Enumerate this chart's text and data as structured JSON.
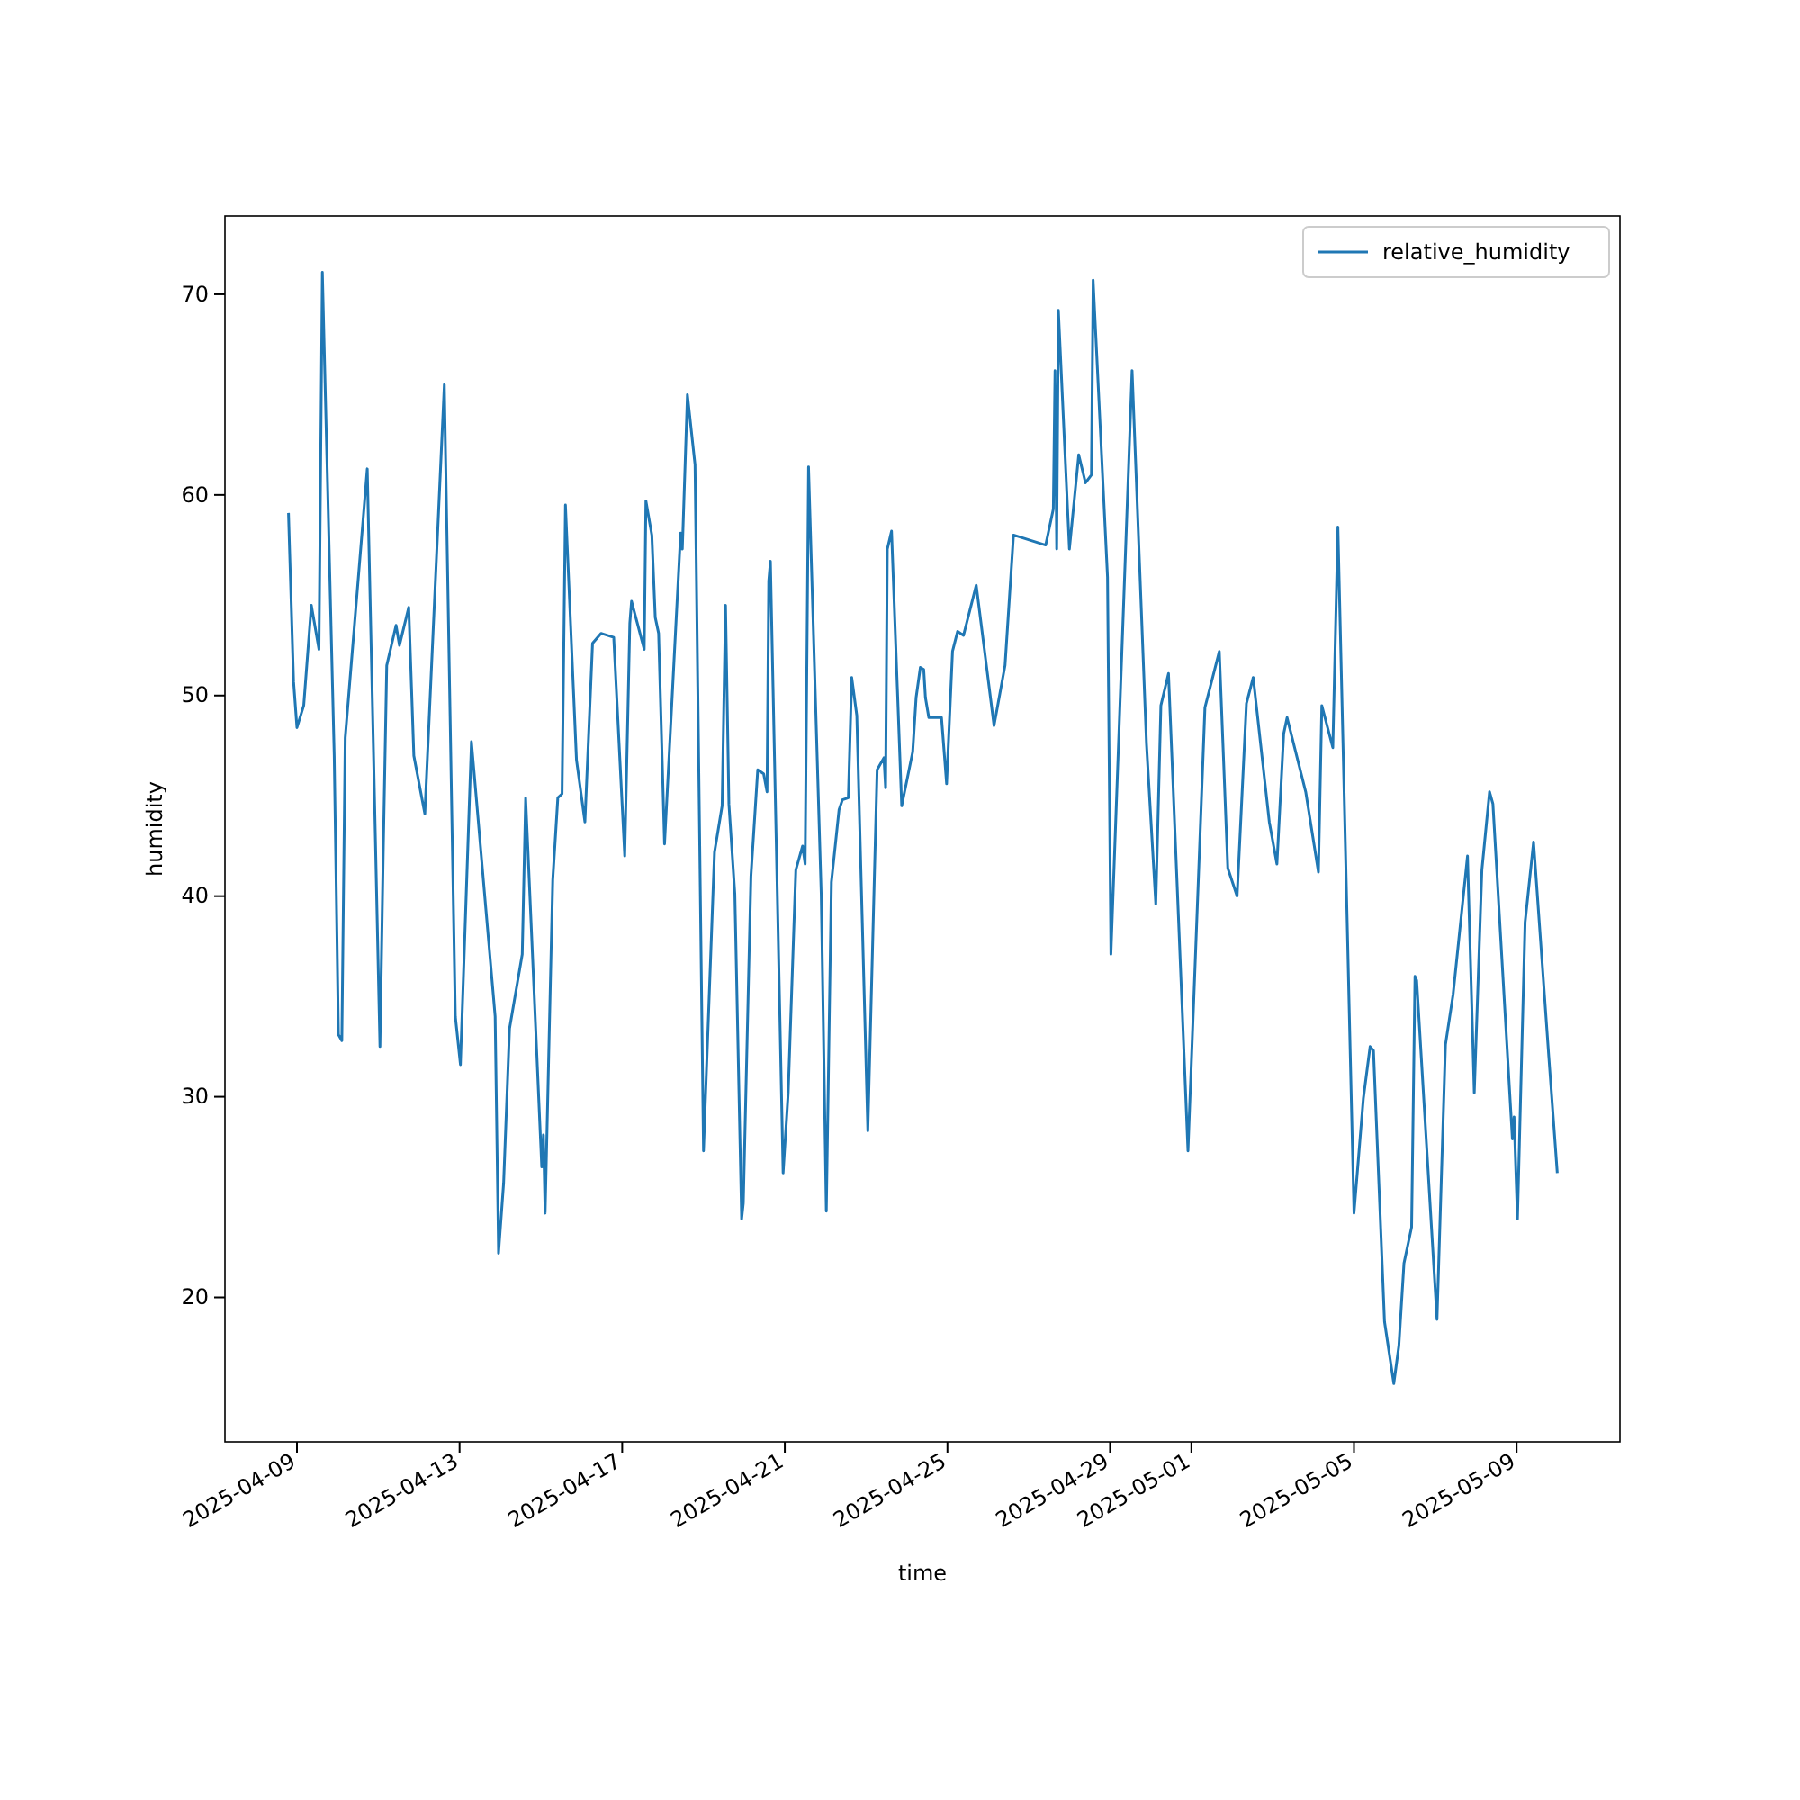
{
  "chart_data": {
    "type": "line",
    "xlabel": "time",
    "ylabel": "humidity",
    "xlim": [
      "2025-04-07T05:30",
      "2025-05-11T13:00"
    ],
    "xticks": [
      "2025-04-09",
      "2025-04-13",
      "2025-04-17",
      "2025-04-21",
      "2025-04-25",
      "2025-04-29",
      "2025-05-01",
      "2025-05-05",
      "2025-05-09"
    ],
    "ylim": [
      12.8,
      73.9
    ],
    "yticks": [
      20,
      30,
      40,
      50,
      60,
      70
    ],
    "legend": "top right",
    "grid": false,
    "x": [
      "2025-04-08T19:00",
      "2025-04-08T22:00",
      "2025-04-09T00:00",
      "2025-04-09T04:00",
      "2025-04-09T08:30",
      "2025-04-09T13:00",
      "2025-04-09T15:00",
      "2025-04-09T22:00",
      "2025-04-10T00:30",
      "2025-04-10T02:30",
      "2025-04-10T04:30",
      "2025-04-10T17:30",
      "2025-04-11T01:00",
      "2025-04-11T03:00",
      "2025-04-11T05:00",
      "2025-04-11T10:30",
      "2025-04-11T12:30",
      "2025-04-11T18:00",
      "2025-04-11T21:00",
      "2025-04-12T03:30",
      "2025-04-12T15:00",
      "2025-04-12T21:30",
      "2025-04-13T00:30",
      "2025-04-13T07:00",
      "2025-04-13T21:00",
      "2025-04-13T23:00",
      "2025-04-14T02:00",
      "2025-04-14T05:30",
      "2025-04-14T13:00",
      "2025-04-14T15:00",
      "2025-04-15T00:30",
      "2025-04-15T01:30",
      "2025-04-15T02:30",
      "2025-04-15T07:00",
      "2025-04-15T10:00",
      "2025-04-15T12:30",
      "2025-04-15T14:30",
      "2025-04-15T21:00",
      "2025-04-16T02:00",
      "2025-04-16T06:30",
      "2025-04-16T11:30",
      "2025-04-16T19:00",
      "2025-04-17T01:30",
      "2025-04-17T04:30",
      "2025-04-17T05:30",
      "2025-04-17T13:00",
      "2025-04-17T14:00",
      "2025-04-17T17:30",
      "2025-04-17T19:30",
      "2025-04-17T21:30",
      "2025-04-18T01:00",
      "2025-04-18T10:30",
      "2025-04-18T11:30",
      "2025-04-18T14:30",
      "2025-04-18T19:00",
      "2025-04-19T00:00",
      "2025-04-19T06:30",
      "2025-04-19T11:00",
      "2025-04-19T13:00",
      "2025-04-19T15:00",
      "2025-04-19T18:30",
      "2025-04-19T22:30",
      "2025-04-19T23:30",
      "2025-04-20T04:00",
      "2025-04-20T08:00",
      "2025-04-20T11:30",
      "2025-04-20T13:30",
      "2025-04-20T14:30",
      "2025-04-20T15:30",
      "2025-04-20T23:00",
      "2025-04-21T02:00",
      "2025-04-21T06:30",
      "2025-04-21T10:30",
      "2025-04-21T12:00",
      "2025-04-21T14:00",
      "2025-04-21T21:30",
      "2025-04-22T00:30",
      "2025-04-22T03:30",
      "2025-04-22T08:00",
      "2025-04-22T10:00",
      "2025-04-22T13:30",
      "2025-04-22T15:30",
      "2025-04-22T18:30",
      "2025-04-23T01:00",
      "2025-04-23T06:30",
      "2025-04-23T10:30",
      "2025-04-23T11:30",
      "2025-04-23T12:30",
      "2025-04-23T15:00",
      "2025-04-23T21:00",
      "2025-04-24T03:30",
      "2025-04-24T05:30",
      "2025-04-24T08:00",
      "2025-04-24T10:00",
      "2025-04-24T11:00",
      "2025-04-24T13:00",
      "2025-04-24T20:30",
      "2025-04-24T23:30",
      "2025-04-25T03:00",
      "2025-04-25T06:00",
      "2025-04-25T09:30",
      "2025-04-25T17:00",
      "2025-04-26T03:30",
      "2025-04-26T10:00",
      "2025-04-26T15:00",
      "2025-04-27T10:00",
      "2025-04-27T14:30",
      "2025-04-27T15:30",
      "2025-04-27T16:30",
      "2025-04-27T17:30",
      "2025-04-28T00:00",
      "2025-04-28T05:30",
      "2025-04-28T07:30",
      "2025-04-28T09:30",
      "2025-04-28T13:00",
      "2025-04-28T14:00",
      "2025-04-28T22:30",
      "2025-04-29T00:30",
      "2025-04-29T13:00",
      "2025-04-29T21:30",
      "2025-04-30T03:00",
      "2025-04-30T06:00",
      "2025-04-30T10:30",
      "2025-04-30T22:00",
      "2025-05-01T08:00",
      "2025-05-01T16:30",
      "2025-05-01T21:30",
      "2025-05-02T03:00",
      "2025-05-02T08:30",
      "2025-05-02T12:30",
      "2025-05-02T22:00",
      "2025-05-03T02:30",
      "2025-05-03T06:30",
      "2025-05-03T08:30",
      "2025-05-03T19:30",
      "2025-05-04T03:00",
      "2025-05-04T05:00",
      "2025-05-04T11:30",
      "2025-05-04T14:30",
      "2025-05-05T00:00",
      "2025-05-05T05:30",
      "2025-05-05T09:30",
      "2025-05-05T11:30",
      "2025-05-05T18:00",
      "2025-05-05T23:30",
      "2025-05-06T02:30",
      "2025-05-06T05:30",
      "2025-05-06T10:00",
      "2025-05-06T12:00",
      "2025-05-06T13:00",
      "2025-05-07T01:00",
      "2025-05-07T06:00",
      "2025-05-07T10:30",
      "2025-05-07T19:00",
      "2025-05-07T23:00",
      "2025-05-08T03:30",
      "2025-05-08T08:00",
      "2025-05-08T10:00",
      "2025-05-08T21:30",
      "2025-05-08T22:30",
      "2025-05-09T00:30",
      "2025-05-09T05:00",
      "2025-05-09T10:00",
      "2025-05-09T19:00",
      "2025-05-10T00:00"
    ],
    "series": [
      {
        "name": "relative_humidity",
        "color": "#1f77b4",
        "values": [
          59.1,
          50.7,
          48.4,
          49.5,
          54.5,
          52.3,
          71.1,
          47.0,
          33.1,
          32.8,
          47.9,
          61.3,
          32.5,
          42.5,
          51.5,
          53.5,
          52.5,
          54.4,
          47.0,
          44.1,
          65.5,
          34.0,
          31.6,
          47.7,
          34.0,
          22.2,
          25.7,
          33.4,
          37.1,
          44.9,
          26.5,
          28.1,
          24.2,
          40.8,
          44.9,
          45.1,
          59.5,
          46.8,
          43.7,
          52.6,
          53.1,
          52.9,
          42.0,
          53.6,
          54.7,
          52.3,
          59.7,
          58.0,
          53.9,
          53.1,
          42.6,
          58.1,
          57.3,
          65.0,
          61.5,
          27.3,
          42.2,
          44.5,
          54.5,
          44.6,
          40.1,
          23.9,
          24.7,
          41.0,
          46.3,
          46.1,
          45.2,
          55.7,
          56.7,
          26.2,
          30.2,
          41.3,
          42.5,
          41.6,
          61.4,
          40.1,
          24.3,
          40.7,
          44.3,
          44.8,
          44.9,
          50.9,
          49.0,
          28.3,
          46.3,
          46.9,
          45.4,
          57.3,
          58.2,
          44.5,
          47.2,
          49.9,
          51.4,
          51.3,
          49.9,
          48.9,
          48.9,
          45.6,
          52.2,
          53.2,
          53.0,
          55.5,
          48.5,
          51.5,
          58.0,
          57.5,
          59.3,
          66.2,
          57.3,
          69.2,
          57.3,
          62.0,
          61.3,
          60.6,
          61.0,
          70.7,
          55.9,
          37.1,
          66.2,
          47.6,
          39.6,
          49.5,
          51.1,
          27.3,
          49.4,
          52.2,
          41.4,
          40.0,
          49.6,
          50.9,
          43.7,
          41.6,
          48.1,
          48.9,
          45.2,
          41.2,
          49.5,
          47.4,
          58.4,
          24.2,
          29.9,
          32.5,
          32.3,
          18.8,
          15.7,
          17.6,
          21.7,
          23.5,
          36.0,
          35.8,
          18.9,
          32.6,
          35.1,
          42.0,
          30.2,
          41.3,
          45.2,
          44.6,
          27.9,
          29.0,
          23.9,
          38.7,
          42.7,
          32.0,
          26.2
        ]
      }
    ]
  }
}
